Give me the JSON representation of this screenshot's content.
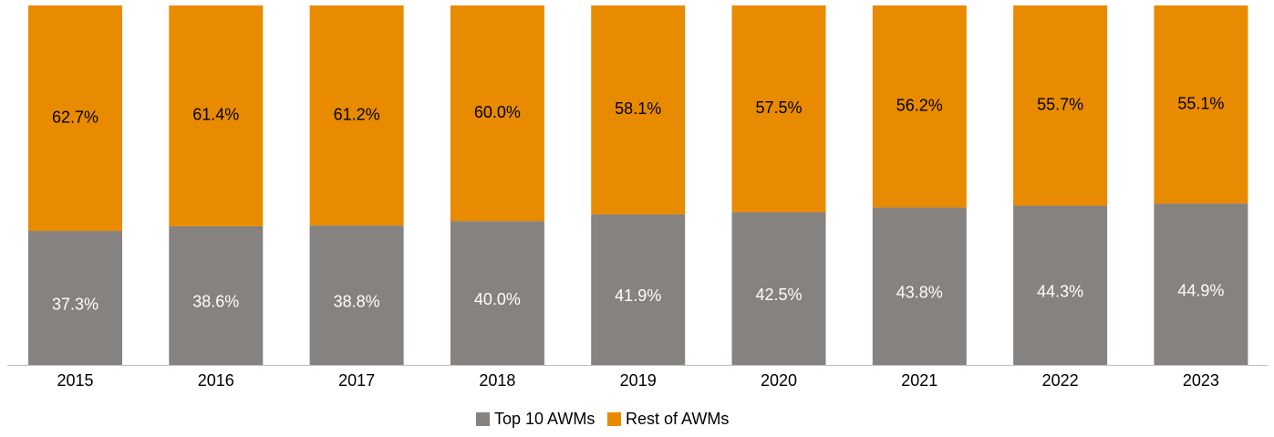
{
  "chart_data": {
    "type": "stacked_bar",
    "categories": [
      "2015",
      "2016",
      "2017",
      "2018",
      "2019",
      "2020",
      "2021",
      "2022",
      "2023"
    ],
    "series": [
      {
        "name": "Top 10 AWMs",
        "color": "#86827f",
        "label_color": "#ffffff",
        "values": [
          37.3,
          38.6,
          38.8,
          40.0,
          41.9,
          42.5,
          43.8,
          44.3,
          44.9
        ],
        "value_labels": [
          "37.3%",
          "38.6%",
          "38.8%",
          "40.0%",
          "41.9%",
          "42.5%",
          "43.8%",
          "44.3%",
          "44.9%"
        ]
      },
      {
        "name": "Rest of AWMs",
        "color": "#e98b00",
        "label_color": "#000000",
        "values": [
          62.7,
          61.4,
          61.2,
          60.0,
          58.1,
          57.5,
          56.2,
          55.7,
          55.1
        ],
        "value_labels": [
          "62.7%",
          "61.4%",
          "61.2%",
          "60.0%",
          "58.1%",
          "57.5%",
          "56.2%",
          "55.7%",
          "55.1%"
        ]
      }
    ],
    "legend": "bottom"
  }
}
